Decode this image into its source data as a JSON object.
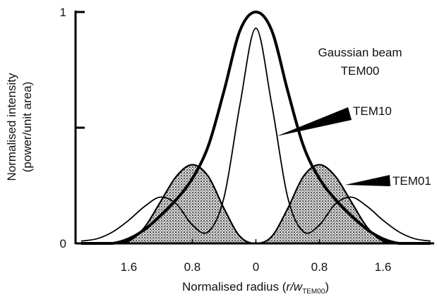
{
  "chart_data": {
    "type": "line",
    "ylabel": [
      "Normalised intensity",
      "(power/unit area)"
    ],
    "xlabel": {
      "text": "Normalised radius",
      "open": "(",
      "var": "r/w",
      "sub": "TEM00",
      "close": ")"
    },
    "annotation": "Gaussian beam",
    "x": [
      -2.2,
      -2.0,
      -1.8,
      -1.6,
      -1.4,
      -1.2,
      -1.0,
      -0.8,
      -0.6,
      -0.4,
      -0.2,
      0,
      0.2,
      0.4,
      0.6,
      0.8,
      1.0,
      1.2,
      1.4,
      1.6,
      1.8,
      2.0,
      2.2
    ],
    "xlim": [
      -2.27,
      2.28
    ],
    "xticks": [
      {
        "value": -1.6,
        "label": "1.6"
      },
      {
        "value": -0.8,
        "label": "0.8"
      },
      0,
      0.8,
      1.6
    ],
    "ylim": [
      0,
      1
    ],
    "yticks": [
      0,
      1
    ],
    "yminor_ticks": [
      0.5
    ],
    "series": [
      {
        "name": "TEM01",
        "color": "#000000",
        "fill": "pattern",
        "values": [
          0,
          0,
          0,
          0.01,
          0.07,
          0.18,
          0.29,
          0.34,
          0.29,
          0.15,
          0.03,
          0,
          0.03,
          0.15,
          0.29,
          0.34,
          0.29,
          0.18,
          0.07,
          0.01,
          0,
          0,
          0
        ]
      },
      {
        "name": "TEM10",
        "color": "#000000",
        "values": [
          0.01,
          0.02,
          0.05,
          0.1,
          0.16,
          0.2,
          0.17,
          0.08,
          0.05,
          0.2,
          0.6,
          0.93,
          0.6,
          0.2,
          0.05,
          0.08,
          0.17,
          0.2,
          0.16,
          0.1,
          0.05,
          0.02,
          0.01
        ]
      },
      {
        "name": "TEM00",
        "color": "#000000",
        "bold": true,
        "values": [
          0,
          0,
          0,
          0.02,
          0.06,
          0.12,
          0.19,
          0.28,
          0.42,
          0.66,
          0.92,
          1.0,
          0.92,
          0.66,
          0.42,
          0.28,
          0.19,
          0.12,
          0.06,
          0.02,
          0,
          0,
          0
        ]
      }
    ]
  }
}
